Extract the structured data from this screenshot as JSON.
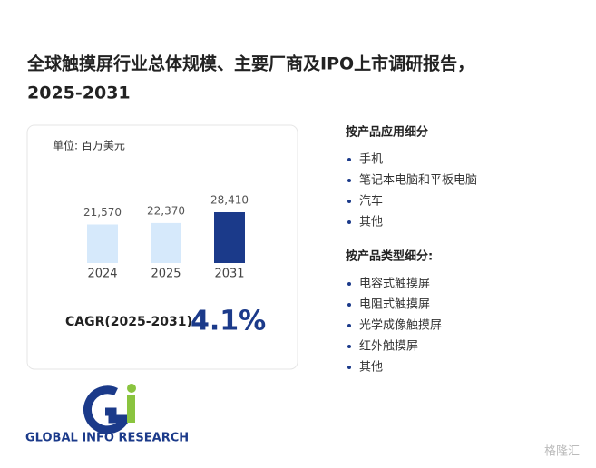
{
  "header": {
    "title_line1": "全球触摸屏行业总体规模、主要厂商及IPO上市调研报告，",
    "title_line2": "2025-2031"
  },
  "chart_data": {
    "type": "bar",
    "unit": "单位: 百万美元",
    "categories": [
      "2024",
      "2025",
      "2031"
    ],
    "values": [
      21570,
      22370,
      28410
    ],
    "value_labels": [
      "21,570",
      "22,370",
      "28,410"
    ],
    "colors": [
      "#d6e9fb",
      "#d6e9fb",
      "#1b3a8a"
    ]
  },
  "cagr": {
    "label": "CAGR(2025-2031):",
    "value": "4.1%"
  },
  "segments": [
    {
      "heading": "按产品应用细分",
      "items": [
        "手机",
        "笔记本电脑和平板电脑",
        "汽车",
        "其他"
      ]
    },
    {
      "heading": "按产品类型细分:",
      "items": [
        "电容式触摸屏",
        "电阻式触摸屏",
        "光学成像触摸屏",
        "红外触摸屏",
        "其他"
      ]
    }
  ],
  "logo": {
    "text": "GLOBAL INFO RESEARCH"
  },
  "watermark": "格隆汇"
}
